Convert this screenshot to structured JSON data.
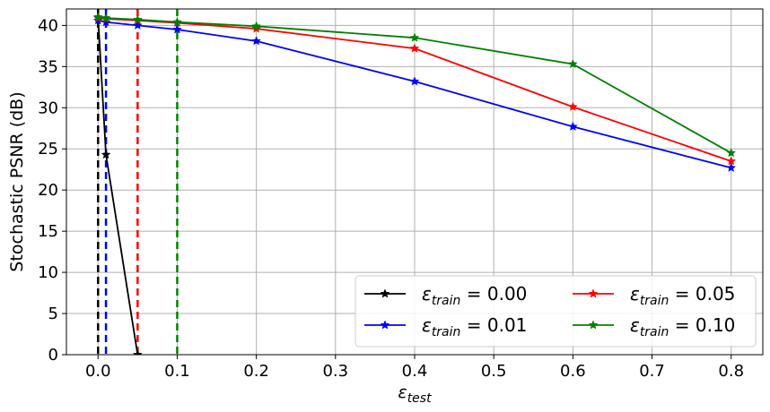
{
  "chart_data": {
    "type": "line",
    "xlabel": {
      "base": "ε",
      "sub": "test"
    },
    "ylabel": "Stochastic PSNR (dB)",
    "xlim": [
      -0.04,
      0.84
    ],
    "ylim": [
      0,
      42
    ],
    "xticks": [
      "0.0",
      "0.1",
      "0.2",
      "0.3",
      "0.4",
      "0.5",
      "0.6",
      "0.7",
      "0.8"
    ],
    "xtick_values": [
      0,
      0.1,
      0.2,
      0.3,
      0.4,
      0.5,
      0.6,
      0.7,
      0.8
    ],
    "yticks": [
      "0",
      "5",
      "10",
      "15",
      "20",
      "25",
      "30",
      "35",
      "40"
    ],
    "ytick_values": [
      0,
      5,
      10,
      15,
      20,
      25,
      30,
      35,
      40
    ],
    "grid": true,
    "legend_position": "lower-right",
    "series": [
      {
        "name": "ε_train = 0.00",
        "name_parts": [
          "ε",
          "train",
          " = 0.00"
        ],
        "color": "#000000",
        "marker": "star",
        "x": [
          0.0,
          0.01,
          0.05
        ],
        "y": [
          41.0,
          24.3,
          0
        ]
      },
      {
        "name": "ε_train = 0.01",
        "name_parts": [
          "ε",
          "train",
          " = 0.01"
        ],
        "color": "#0000ff",
        "marker": "star",
        "x": [
          0.0,
          0.01,
          0.05,
          0.1,
          0.2,
          0.4,
          0.6,
          0.8
        ],
        "y": [
          40.6,
          40.4,
          40.0,
          39.5,
          38.1,
          33.2,
          27.7,
          22.7
        ]
      },
      {
        "name": "ε_train = 0.05",
        "name_parts": [
          "ε",
          "train",
          " = 0.05"
        ],
        "color": "#ff0000",
        "marker": "star",
        "x": [
          0.0,
          0.01,
          0.05,
          0.1,
          0.2,
          0.4,
          0.6,
          0.8
        ],
        "y": [
          40.9,
          40.8,
          40.6,
          40.3,
          39.6,
          37.2,
          30.1,
          23.5
        ]
      },
      {
        "name": "ε_train = 0.10",
        "name_parts": [
          "ε",
          "train",
          " = 0.10"
        ],
        "color": "#008000",
        "marker": "star",
        "x": [
          0.0,
          0.01,
          0.05,
          0.1,
          0.2,
          0.4,
          0.6,
          0.8
        ],
        "y": [
          41.0,
          40.9,
          40.7,
          40.4,
          39.9,
          38.5,
          35.3,
          24.5
        ]
      }
    ],
    "vlines": [
      {
        "x": 0.0,
        "color": "#000000",
        "style": "dashed"
      },
      {
        "x": 0.01,
        "color": "#0000ff",
        "style": "dashed"
      },
      {
        "x": 0.05,
        "color": "#ff0000",
        "style": "dashed"
      },
      {
        "x": 0.1,
        "color": "#008000",
        "style": "dashed"
      }
    ]
  }
}
